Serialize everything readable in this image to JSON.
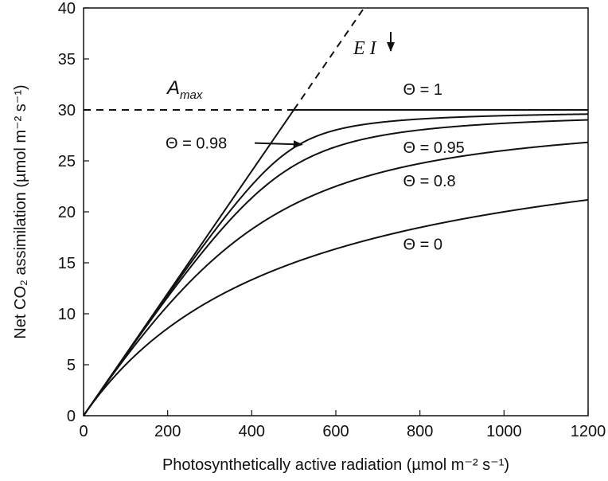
{
  "chart_data": {
    "type": "line",
    "xlabel": "Photosynthetically active radiation (µmol m⁻² s⁻¹)",
    "ylabel": "Net CO₂ assimilation (µmol m⁻² s⁻¹)",
    "xlim": [
      0,
      1200
    ],
    "ylim": [
      0,
      40
    ],
    "xticks": [
      0,
      200,
      400,
      600,
      800,
      1000,
      1200
    ],
    "yticks": [
      0,
      5,
      10,
      15,
      20,
      25,
      30,
      35,
      40
    ],
    "grid": false,
    "legend": "none",
    "model": {
      "quantum_efficiency": 0.06,
      "a_max": 30,
      "x_range": [
        0,
        1200
      ]
    },
    "series": [
      {
        "name": "Θ = 1",
        "theta": 1,
        "style": "solid"
      },
      {
        "name": "Θ = 0.98",
        "theta": 0.98,
        "style": "solid"
      },
      {
        "name": "Θ = 0.95",
        "theta": 0.95,
        "style": "solid"
      },
      {
        "name": "Θ = 0.8",
        "theta": 0.8,
        "style": "solid"
      },
      {
        "name": "Θ = 0",
        "theta": 0,
        "style": "solid"
      }
    ],
    "reference_lines": {
      "initial_slope": {
        "label_main": "E I",
        "x_end": 667,
        "y_end": 40,
        "style": "dashed"
      },
      "amax": {
        "label_main": "A",
        "label_sub": "max",
        "y": 30,
        "x_end": 500,
        "style": "dashed"
      }
    },
    "annotations": [
      {
        "text": "Θ = 1",
        "x": 760,
        "y": 31.5
      },
      {
        "text": "Θ = 0.98",
        "x": 195,
        "y": 26.2,
        "arrow_to": [
          520,
          26.6
        ]
      },
      {
        "text": "Θ = 0.95",
        "x": 760,
        "y": 25.8
      },
      {
        "text": "Θ = 0.8",
        "x": 760,
        "y": 22.5
      },
      {
        "text": "Θ = 0",
        "x": 760,
        "y": 16.3
      }
    ]
  }
}
